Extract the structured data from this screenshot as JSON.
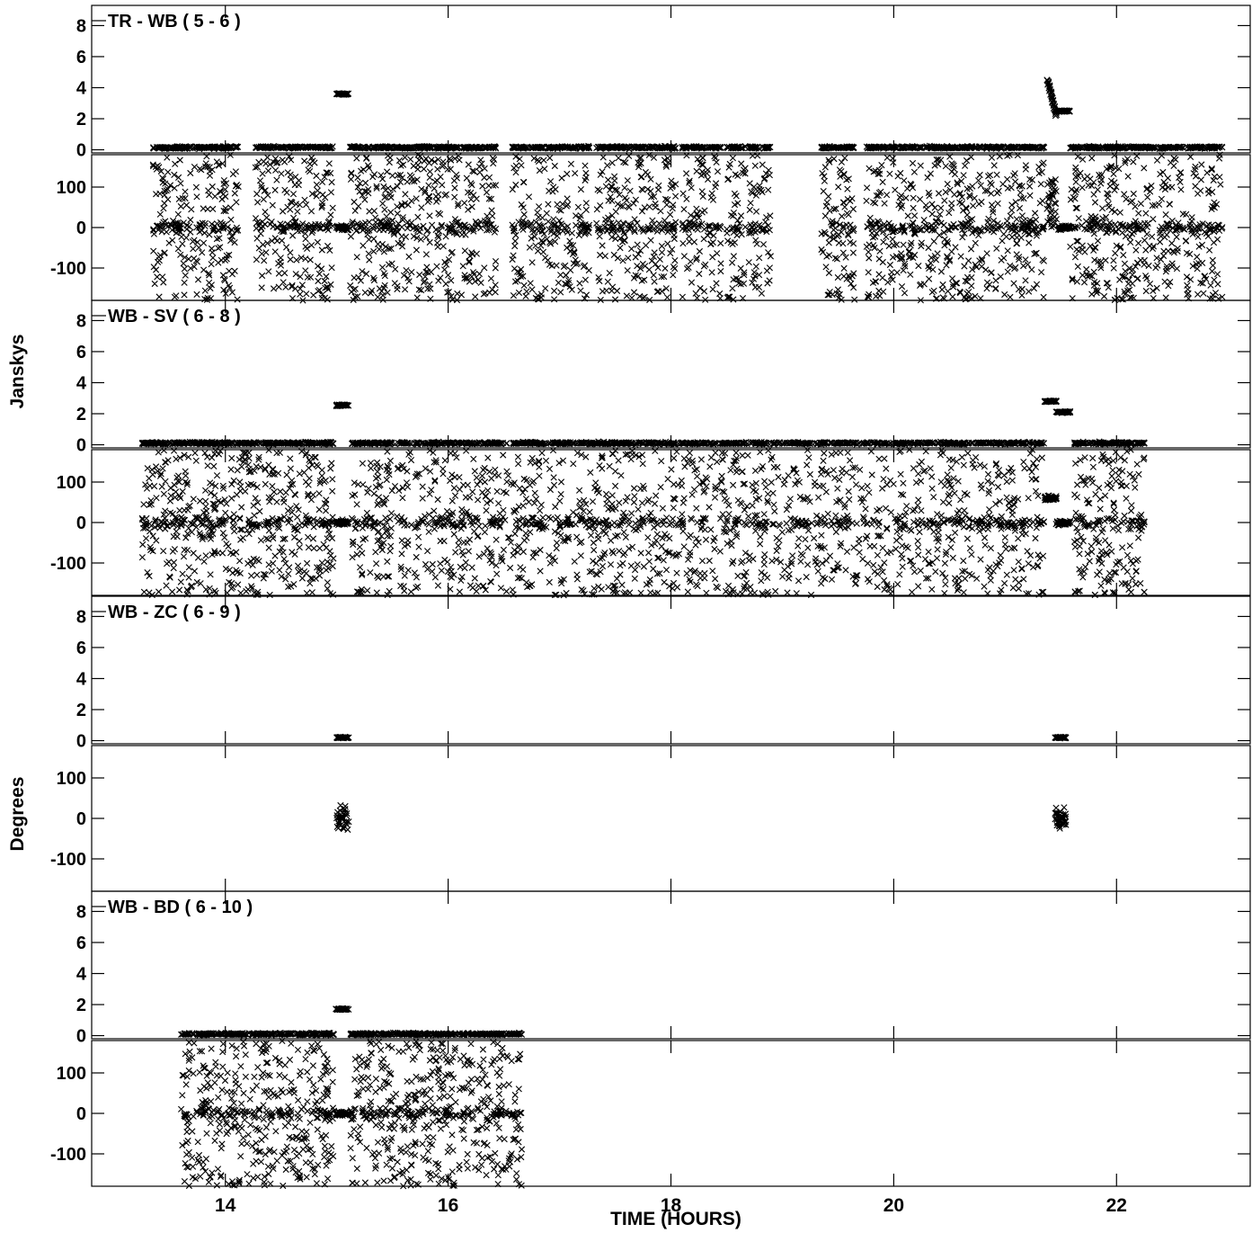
{
  "chart_data": {
    "type": "scatter",
    "xlabel": "TIME (HOURS)",
    "ylabel_amplitude": "Janskys",
    "ylabel_phase": "Degrees",
    "x_range": [
      12.8,
      23.2
    ],
    "x_ticks": [
      14,
      16,
      18,
      20,
      22
    ],
    "amp_range": [
      -0.2,
      9.3
    ],
    "amp_ticks": [
      0,
      2,
      4,
      6,
      8
    ],
    "phase_range": [
      -180,
      180
    ],
    "phase_ticks": [
      -100,
      0,
      100
    ],
    "marker": "x",
    "grid": false,
    "panels": [
      {
        "baseline": "TR - WB ( 5 - 6 )",
        "scans": [
          [
            13.35,
            14.12
          ],
          [
            14.27,
            14.97
          ],
          [
            15.12,
            16.43
          ],
          [
            16.57,
            17.27
          ],
          [
            17.33,
            18.05
          ],
          [
            18.1,
            18.45
          ],
          [
            18.5,
            18.67
          ],
          [
            18.7,
            18.9
          ],
          [
            19.35,
            19.65
          ],
          [
            19.75,
            21.35
          ]
        ],
        "extra": [
          [
            21.58,
            22.95
          ]
        ],
        "amp_typical": 0.15,
        "phase_spread": 180,
        "calibrator_scans": [
          {
            "x": [
              15.0,
              15.1
            ],
            "amp": 3.6,
            "phase": 0
          },
          {
            "x": [
              21.38,
              21.46
            ],
            "amp": [
              2.2,
              4.5
            ],
            "phase": [
              0,
              120
            ]
          },
          {
            "x": [
              21.48,
              21.58
            ],
            "amp": 2.5,
            "phase": 0
          }
        ]
      },
      {
        "baseline": "WB - SV ( 6 - 8 )",
        "scans": [
          [
            13.25,
            14.98
          ],
          [
            15.12,
            21.35
          ],
          [
            21.62,
            22.25
          ]
        ],
        "extra": [],
        "amp_typical": 0.1,
        "phase_spread": 180,
        "calibrator_scans": [
          {
            "x": [
              15.0,
              15.1
            ],
            "amp": 2.55,
            "phase": 0
          },
          {
            "x": [
              21.35,
              21.46
            ],
            "amp": 2.8,
            "phase": 60
          },
          {
            "x": [
              21.46,
              21.58
            ],
            "amp": 2.1,
            "phase": 0
          }
        ]
      },
      {
        "baseline": "WB - ZC ( 6 - 9 )",
        "scans": [],
        "extra": [],
        "amp_typical": 0.2,
        "phase_spread": 100,
        "calibrator_scans": [
          {
            "x": [
              15.0,
              15.1
            ],
            "amp": 0.2,
            "phase": [
              -110,
              110
            ]
          },
          {
            "x": [
              21.45,
              21.55
            ],
            "amp": 0.2,
            "phase": [
              -170,
              130
            ]
          }
        ]
      },
      {
        "baseline": "WB - BD ( 6 - 10 )",
        "scans": [
          [
            13.6,
            14.98
          ],
          [
            15.12,
            16.67
          ]
        ],
        "extra": [],
        "amp_typical": 0.1,
        "phase_spread": 180,
        "calibrator_scans": [
          {
            "x": [
              15.0,
              15.1
            ],
            "amp": 1.7,
            "phase": 0
          }
        ]
      }
    ]
  }
}
